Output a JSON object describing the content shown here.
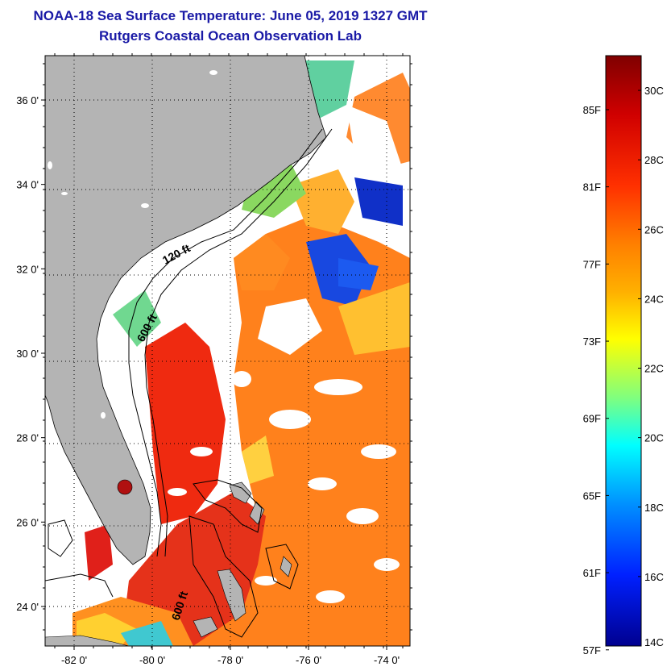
{
  "title": "NOAA-18 Sea Surface Temperature:  June 05, 2019 1327 GMT",
  "subtitle": "Rutgers Coastal Ocean Observation Lab",
  "map": {
    "lat_range": [
      23,
      37
    ],
    "lon_range": [
      -83,
      -73
    ],
    "lat_ticks": [
      {
        "value": 24,
        "label": "24 0'"
      },
      {
        "value": 26,
        "label": "26 0'"
      },
      {
        "value": 28,
        "label": "28 0'"
      },
      {
        "value": 30,
        "label": "30 0'"
      },
      {
        "value": 32,
        "label": "32 0'"
      },
      {
        "value": 34,
        "label": "34 0'"
      },
      {
        "value": 36,
        "label": "36 0'"
      }
    ],
    "lon_ticks": [
      {
        "value": -82,
        "label": "-82 0'"
      },
      {
        "value": -80,
        "label": "-80 0'"
      },
      {
        "value": -78,
        "label": "-78 0'"
      },
      {
        "value": -76,
        "label": "-76 0'"
      },
      {
        "value": -74,
        "label": "-74 0'"
      }
    ],
    "contour_labels": {
      "c120": "120 ft",
      "c600a": "600 ft",
      "c600b": "600 ft"
    },
    "colors": {
      "land": "#b4b4b4",
      "cloud": "#ffffff",
      "grid": "#000000"
    }
  },
  "colorbar": {
    "celsius_range": [
      14,
      31
    ],
    "celsius_labels": [
      {
        "value": 14,
        "label": "14C"
      },
      {
        "value": 16,
        "label": "16C"
      },
      {
        "value": 18,
        "label": "18C"
      },
      {
        "value": 20,
        "label": "20C"
      },
      {
        "value": 22,
        "label": "22C"
      },
      {
        "value": 24,
        "label": "24C"
      },
      {
        "value": 26,
        "label": "26C"
      },
      {
        "value": 28,
        "label": "28C"
      },
      {
        "value": 30,
        "label": "30C"
      }
    ],
    "fahrenheit_labels": [
      {
        "value": 57,
        "label": "57F"
      },
      {
        "value": 61,
        "label": "61F"
      },
      {
        "value": 65,
        "label": "65F"
      },
      {
        "value": 69,
        "label": "69F"
      },
      {
        "value": 73,
        "label": "73F"
      },
      {
        "value": 77,
        "label": "77F"
      },
      {
        "value": 81,
        "label": "81F"
      },
      {
        "value": 85,
        "label": "85F"
      }
    ],
    "gradient": [
      "#7f0000",
      "#d00000",
      "#ff3000",
      "#ff8000",
      "#ffb000",
      "#ffff00",
      "#7fff7f",
      "#00ffff",
      "#0090ff",
      "#0020ff",
      "#00008f"
    ]
  }
}
